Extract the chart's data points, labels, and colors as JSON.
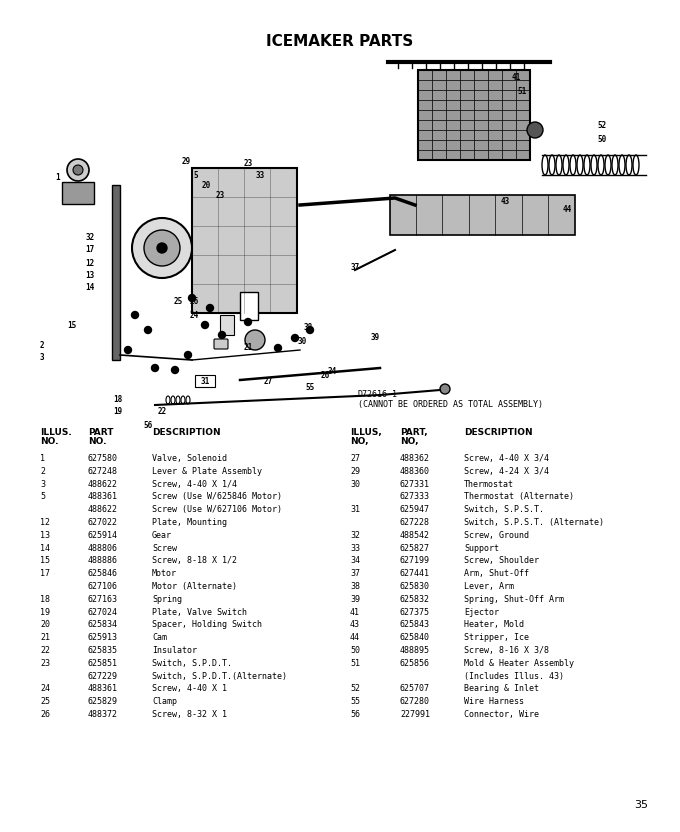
{
  "title": "ICEMAKER PARTS",
  "diagram_note_line1": "D72616-1",
  "diagram_note_line2": "(CANNOT BE ORDERED AS TOTAL ASSEMBLY)",
  "page_number": "35",
  "bg": "#ffffff",
  "parts_left": [
    [
      "1",
      "627580",
      "Valve, Solenoid"
    ],
    [
      "2",
      "627248",
      "Lever & Plate Assembly"
    ],
    [
      "3",
      "488622",
      "Screw, 4-40 X 1/4"
    ],
    [
      "5",
      "488361",
      "Screw (Use W/625846 Motor)"
    ],
    [
      "",
      "488622",
      "Screw (Use W/627106 Motor)"
    ],
    [
      "12",
      "627022",
      "Plate, Mounting"
    ],
    [
      "13",
      "625914",
      "Gear"
    ],
    [
      "14",
      "488806",
      "Screw"
    ],
    [
      "15",
      "488886",
      "Screw, 8-18 X 1/2"
    ],
    [
      "17",
      "625846",
      "Motor"
    ],
    [
      "",
      "627106",
      "Motor (Alternate)"
    ],
    [
      "18",
      "627163",
      "Spring"
    ],
    [
      "19",
      "627024",
      "Plate, Valve Switch"
    ],
    [
      "20",
      "625834",
      "Spacer, Holding Switch"
    ],
    [
      "21",
      "625913",
      "Cam"
    ],
    [
      "22",
      "625835",
      "Insulator"
    ],
    [
      "23",
      "625851",
      "Switch, S.P.D.T."
    ],
    [
      "",
      "627229",
      "Switch, S.P.D.T.(Alternate)"
    ],
    [
      "24",
      "488361",
      "Screw, 4-40 X 1"
    ],
    [
      "25",
      "625829",
      "Clamp"
    ],
    [
      "26",
      "488372",
      "Screw, 8-32 X 1"
    ]
  ],
  "parts_right": [
    [
      "27",
      "488362",
      "Screw, 4-40 X 3/4"
    ],
    [
      "29",
      "488360",
      "Screw, 4-24 X 3/4"
    ],
    [
      "30",
      "627331",
      "Thermostat"
    ],
    [
      "",
      "627333",
      "Thermostat (Alternate)"
    ],
    [
      "31",
      "625947",
      "Switch, S.P.S.T."
    ],
    [
      "",
      "627228",
      "Switch, S.P.S.T. (Alternate)"
    ],
    [
      "32",
      "488542",
      "Screw, Ground"
    ],
    [
      "33",
      "625827",
      "Support"
    ],
    [
      "34",
      "627199",
      "Screw, Shoulder"
    ],
    [
      "37",
      "627441",
      "Arm, Shut-Off"
    ],
    [
      "38",
      "625830",
      "Lever, Arm"
    ],
    [
      "39",
      "625832",
      "Spring, Shut-Off Arm"
    ],
    [
      "41",
      "627375",
      "Ejector"
    ],
    [
      "43",
      "625843",
      "Heater, Mold"
    ],
    [
      "44",
      "625840",
      "Stripper, Ice"
    ],
    [
      "50",
      "488895",
      "Screw, 8-16 X 3/8"
    ],
    [
      "51",
      "625856",
      "Mold & Heater Assembly"
    ],
    [
      "",
      "",
      "(Includes Illus. 43)"
    ],
    [
      "52",
      "625707",
      "Bearing & Inlet"
    ],
    [
      "55",
      "627280",
      "Wire Harness"
    ],
    [
      "56",
      "227991",
      "Connector, Wire"
    ]
  ],
  "title_fontsize": 11,
  "header_fontsize": 6.5,
  "row_fontsize": 6.0,
  "note_fontsize": 6.0
}
